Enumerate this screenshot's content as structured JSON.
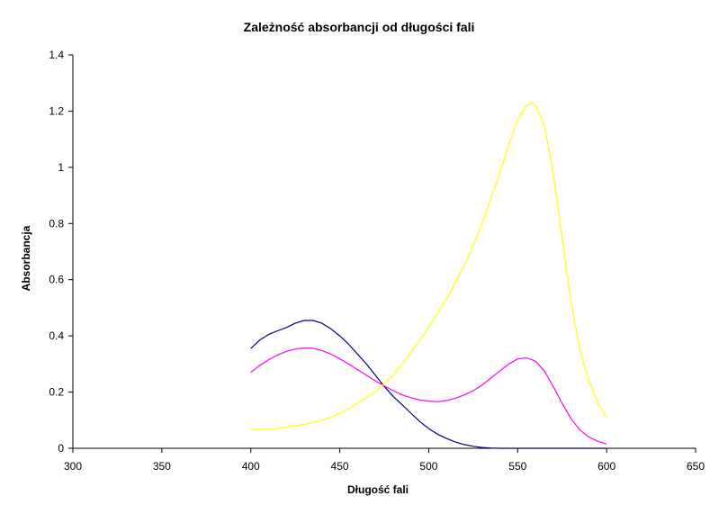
{
  "chart_data": {
    "type": "line",
    "title": "Zależność absorbancji od długości fali",
    "xlabel": "Długość fali",
    "ylabel": "Absorbancja",
    "xlim": [
      300,
      650
    ],
    "ylim": [
      0,
      1.4
    ],
    "x_ticks": [
      300,
      350,
      400,
      450,
      500,
      550,
      600,
      650
    ],
    "y_ticks": [
      0,
      0.2,
      0.4,
      0.6,
      0.8,
      1,
      1.2,
      1.4
    ],
    "grid": false,
    "legend": "none",
    "series": [
      {
        "color": "#000080",
        "x": [
          400,
          405,
          410,
          415,
          420,
          425,
          430,
          435,
          440,
          445,
          450,
          455,
          460,
          465,
          470,
          475,
          480,
          485,
          490,
          495,
          500,
          505,
          510,
          515,
          520,
          525,
          530,
          535,
          540,
          545,
          550,
          555,
          560,
          565,
          570,
          575,
          580,
          585,
          590,
          595,
          600
        ],
        "y": [
          0.355,
          0.385,
          0.405,
          0.418,
          0.43,
          0.445,
          0.455,
          0.455,
          0.445,
          0.425,
          0.4,
          0.37,
          0.335,
          0.3,
          0.26,
          0.22,
          0.185,
          0.155,
          0.125,
          0.095,
          0.07,
          0.05,
          0.035,
          0.022,
          0.013,
          0.007,
          0.003,
          0.001,
          0,
          0,
          0,
          0,
          0,
          0,
          0,
          0,
          0,
          0,
          0,
          0,
          0
        ]
      },
      {
        "color": "#ff00ff",
        "x": [
          400,
          405,
          410,
          415,
          420,
          425,
          430,
          435,
          440,
          445,
          450,
          455,
          460,
          465,
          470,
          475,
          480,
          485,
          490,
          495,
          500,
          505,
          510,
          515,
          520,
          525,
          530,
          535,
          540,
          545,
          550,
          555,
          560,
          565,
          570,
          575,
          580,
          585,
          590,
          595,
          600
        ],
        "y": [
          0.27,
          0.295,
          0.315,
          0.332,
          0.345,
          0.353,
          0.357,
          0.356,
          0.348,
          0.335,
          0.318,
          0.3,
          0.28,
          0.26,
          0.24,
          0.222,
          0.205,
          0.19,
          0.18,
          0.172,
          0.168,
          0.166,
          0.17,
          0.178,
          0.19,
          0.205,
          0.225,
          0.25,
          0.275,
          0.3,
          0.318,
          0.322,
          0.31,
          0.275,
          0.22,
          0.16,
          0.105,
          0.065,
          0.04,
          0.025,
          0.015
        ]
      },
      {
        "color": "#ffff00",
        "x": [
          400,
          405,
          410,
          415,
          420,
          425,
          430,
          435,
          440,
          445,
          450,
          455,
          460,
          465,
          470,
          475,
          480,
          485,
          490,
          495,
          500,
          505,
          510,
          515,
          520,
          525,
          530,
          535,
          540,
          545,
          550,
          555,
          558,
          560,
          565,
          570,
          575,
          580,
          585,
          590,
          595,
          600
        ],
        "y": [
          0.067,
          0.067,
          0.068,
          0.07,
          0.075,
          0.08,
          0.085,
          0.092,
          0.1,
          0.11,
          0.125,
          0.14,
          0.16,
          0.18,
          0.2,
          0.23,
          0.26,
          0.3,
          0.34,
          0.385,
          0.43,
          0.48,
          0.53,
          0.59,
          0.65,
          0.72,
          0.8,
          0.89,
          0.98,
          1.08,
          1.17,
          1.22,
          1.23,
          1.22,
          1.15,
          0.98,
          0.75,
          0.52,
          0.35,
          0.24,
          0.16,
          0.11
        ]
      }
    ]
  }
}
